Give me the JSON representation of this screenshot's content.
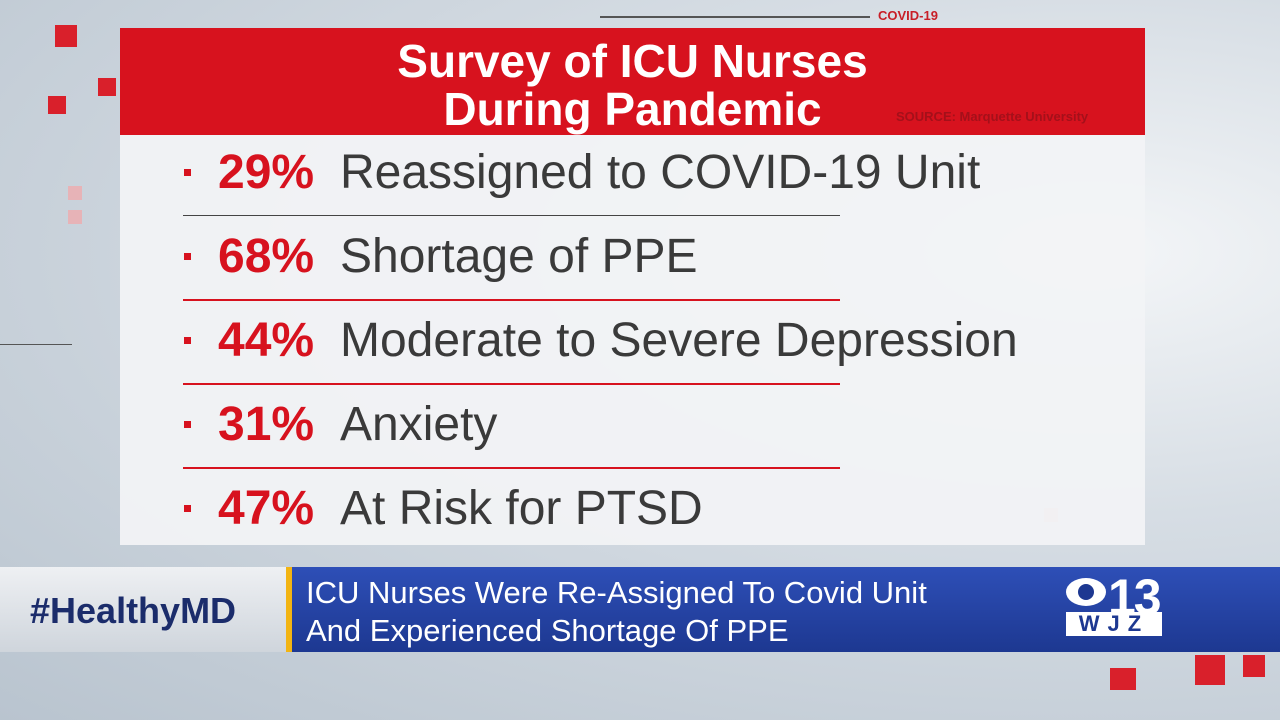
{
  "tag": "COVID-19",
  "header": {
    "title_lines": [
      "Survey of ICU Nurses",
      "During Pandemic"
    ],
    "source": "SOURCE: Marquette University"
  },
  "items": [
    {
      "percent": "29%",
      "label": "Reassigned to COVID-19 Unit"
    },
    {
      "percent": "68%",
      "label": "Shortage of PPE"
    },
    {
      "percent": "44%",
      "label": "Moderate to Severe Depression"
    },
    {
      "percent": "31%",
      "label": "Anxiety"
    },
    {
      "percent": "47%",
      "label": "At Risk for PTSD"
    }
  ],
  "lower_third": {
    "hashtag": "#HealthyMD",
    "headline_lines": [
      "ICU Nurses Were Re-Assigned To Covid Unit",
      "And Experienced Shortage Of PPE"
    ]
  },
  "logo": {
    "number": "13",
    "call_sign": "WJZ"
  }
}
